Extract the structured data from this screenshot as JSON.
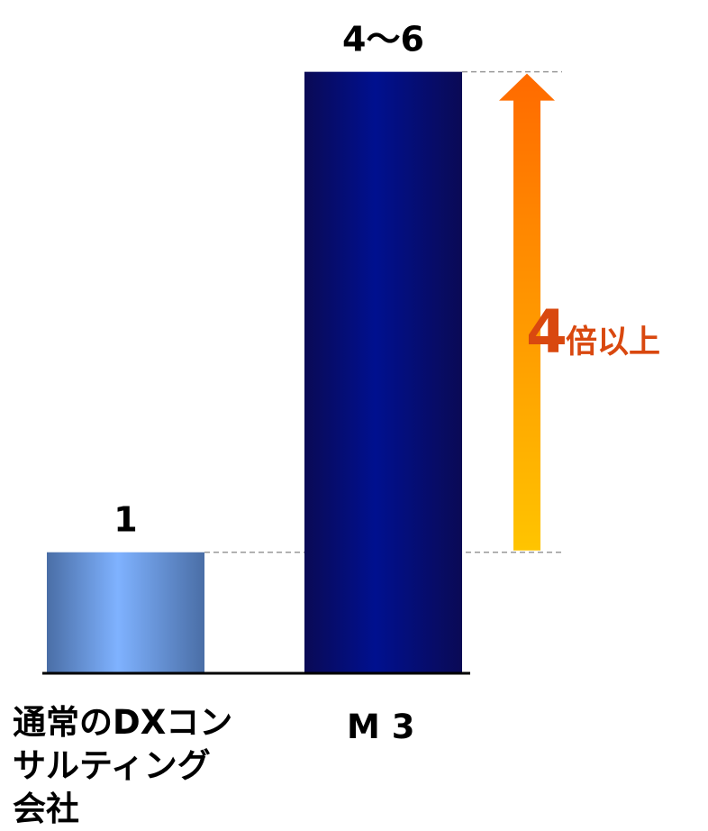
{
  "chart_data": {
    "type": "bar",
    "categories": [
      "通常のDXコンサルティング会社",
      "M 3"
    ],
    "values": [
      1,
      5
    ],
    "value_labels": [
      "1",
      "4〜6"
    ],
    "ylim": [
      0,
      5.2
    ],
    "grid": false,
    "title": "",
    "xlabel": "",
    "ylabel": "",
    "colors": {
      "bar_0": "#7fb2ff",
      "bar_0_edge": "#4a6ea6",
      "bar_1": "#00108f",
      "bar_1_edge": "#0a0a55"
    },
    "annotation": {
      "number": "4",
      "text": "倍以上",
      "from_value": 1,
      "to_value": 5,
      "color": "#d9480f",
      "arrow_top": "#ff6a00",
      "arrow_bottom": "#ffc400"
    }
  }
}
